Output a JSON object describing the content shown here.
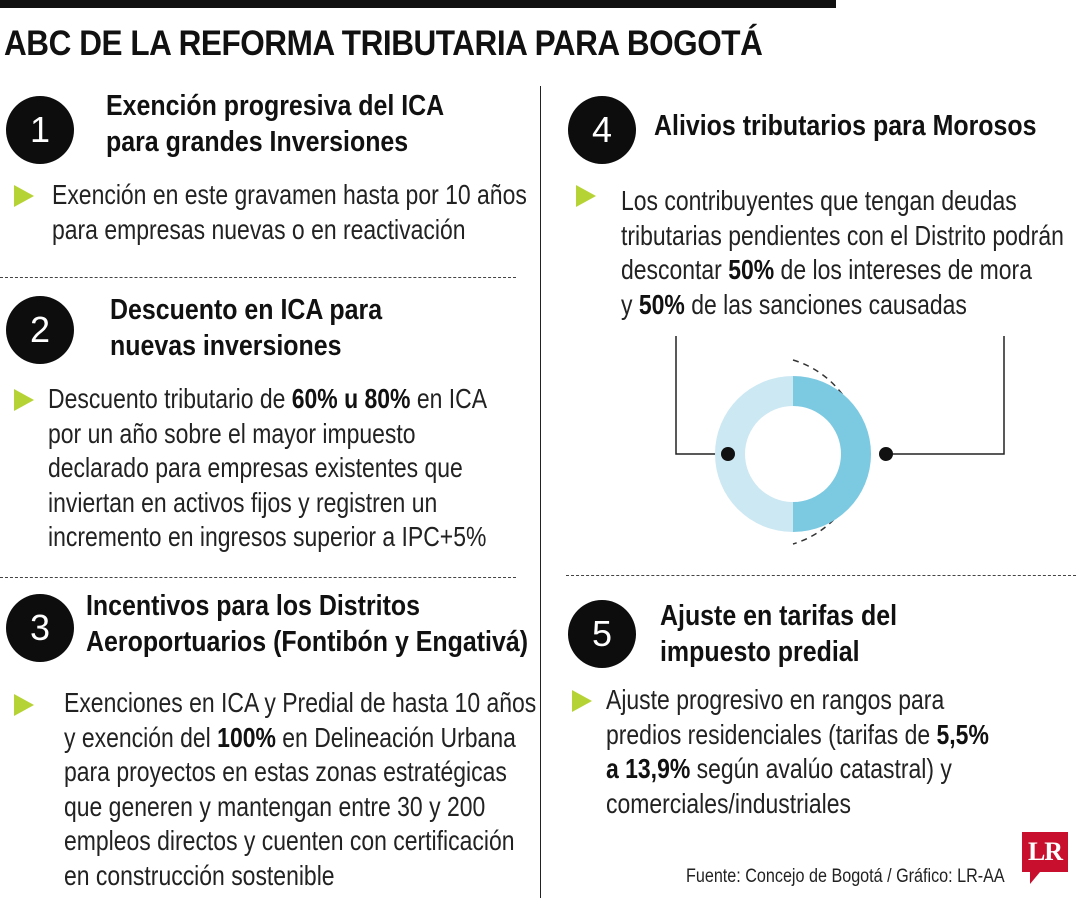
{
  "title": "ABC DE LA REFORMA TRIBUTARIA PARA BOGOTÁ",
  "colors": {
    "arrow": "#b6d335",
    "donut_light": "#cce8f3",
    "donut_dark": "#7cc9e2",
    "logo": "#c8102e"
  },
  "sections": [
    {
      "number": "1",
      "heading": [
        "Exención progresiva del ICA",
        "para grandes Inversiones"
      ],
      "body": [
        "Exención en este gravamen hasta por 10 años",
        "para empresas nuevas o en reactivación"
      ]
    },
    {
      "number": "2",
      "heading": [
        "Descuento en ICA para",
        "nuevas inversiones"
      ],
      "body": [
        "Descuento tributario de <b>60% u 80%</b> en ICA",
        "por un año sobre el mayor impuesto",
        "declarado para empresas existentes que",
        "inviertan en activos fijos y registren un",
        "incremento en ingresos superior a IPC+5%"
      ]
    },
    {
      "number": "3",
      "heading": [
        "Incentivos para los Distritos",
        "Aeroportuarios (Fontibón y Engativá)"
      ],
      "body": [
        "Exenciones en ICA y Predial de hasta 10 años",
        "y exención del <b>100%</b> en Delineación Urbana",
        "para proyectos en estas zonas estratégicas",
        "que generen y mantengan entre 30 y 200",
        "empleos directos y cuenten con certificación",
        "en construcción sostenible"
      ]
    },
    {
      "number": "4",
      "heading": [
        "Alivios tributarios para Morosos"
      ],
      "body": [
        "Los contribuyentes que tengan deudas",
        "tributarias pendientes con el Distrito podrán",
        "descontar <b>50%</b> de los intereses de mora",
        "y <b>50%</b> de las sanciones causadas"
      ]
    },
    {
      "number": "5",
      "heading": [
        "Ajuste en tarifas del",
        "impuesto predial"
      ],
      "body": [
        "Ajuste progresivo en rangos para",
        "predios residenciales (tarifas de <b>5,5%</b>",
        "<b>a 13,9%</b> según avalúo catastral) y",
        "comerciales/industriales"
      ]
    }
  ],
  "donut": {
    "left_share": 0.5,
    "right_share": 0.5
  },
  "source": "Fuente: Concejo de Bogotá / Gráfico: LR-AA",
  "logo": "LR"
}
